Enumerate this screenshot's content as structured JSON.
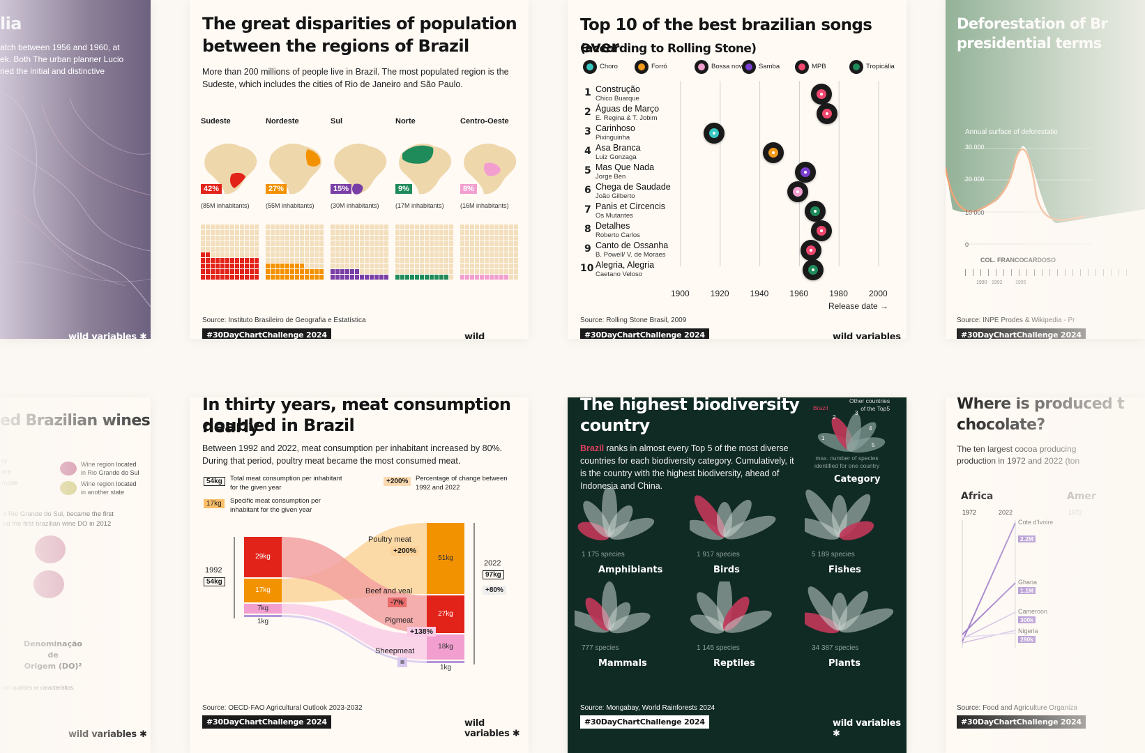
{
  "brand": "wild variables ✱",
  "hashtag": "#30DayChartChallenge 2024",
  "left_top": {
    "title_fragment": "lia",
    "text": [
      "atch between 1956 and 1960, at",
      "ek. Both The urban planner Lucio",
      "ned the initial and distinctive"
    ]
  },
  "population": {
    "title": "The great disparities of population between the regions of Brazil",
    "desc": "More than 200 millions of people live in Brazil. The most populated region is the Sudeste, which includes the cities of Rio de Janeiro and São Paulo.",
    "source": "Source: Instituto Brasileiro de Geografia e Estatística",
    "regions": [
      {
        "name": "Sudeste",
        "pct": "42%",
        "inhabitants": "(85M inhabitants)",
        "color": "#e2231a",
        "share": 42
      },
      {
        "name": "Nordeste",
        "pct": "27%",
        "inhabitants": "(55M inhabitants)",
        "color": "#f39200",
        "share": 27
      },
      {
        "name": "Sul",
        "pct": "15%",
        "inhabitants": "(30M inhabitants)",
        "color": "#7a3fa6",
        "share": 15
      },
      {
        "name": "Norte",
        "pct": "9%",
        "inhabitants": "(17M inhabitants)",
        "color": "#1f8a5a",
        "share": 9
      },
      {
        "name": "Centro-Oeste",
        "pct": "8%",
        "inhabitants": "(16M inhabitants)",
        "color": "#f29fd0",
        "share": 8
      }
    ]
  },
  "songs": {
    "title_line1": "Top 10 of the best brazilian songs ever",
    "title_line2": "(according to Rolling Stone)",
    "source": "Source: Rolling Stone Brasil, 2009",
    "legend": [
      {
        "label": "Choro",
        "color": "#38c6c0"
      },
      {
        "label": "Forró",
        "color": "#f29a1b"
      },
      {
        "label": "Bossa nova",
        "color": "#f29fd0"
      },
      {
        "label": "Samba",
        "color": "#7a3fd0"
      },
      {
        "label": "MPB",
        "color": "#f0476e"
      },
      {
        "label": "Tropicália",
        "color": "#1f8a5a"
      }
    ],
    "xlabel": "Release date →"
  },
  "chart_data": [
    {
      "type": "scatter",
      "title": "Top 10 of the best brazilian songs ever (according to Rolling Stone)",
      "xlabel": "Release date →",
      "xlim": [
        1900,
        2000
      ],
      "ticks": [
        "1900",
        "1920",
        "1940",
        "1960",
        "1980",
        "2000"
      ],
      "points": [
        {
          "rank": "1",
          "song": "Construção",
          "artist": "Chico Buarque",
          "year": 1971,
          "genre": "MPB"
        },
        {
          "rank": "2",
          "song": "Águas de Março",
          "artist": "E. Regina & T. Jobim",
          "year": 1974,
          "genre": "MPB"
        },
        {
          "rank": "3",
          "song": "Carinhoso",
          "artist": "Pixinguinha",
          "year": 1917,
          "genre": "Choro"
        },
        {
          "rank": "4",
          "song": "Asa Branca",
          "artist": "Luiz Gonzaga",
          "year": 1947,
          "genre": "Forró"
        },
        {
          "rank": "5",
          "song": "Mas Que Nada",
          "artist": "Jorge Ben",
          "year": 1963,
          "genre": "Samba"
        },
        {
          "rank": "6",
          "song": "Chega de Saudade",
          "artist": "João Gilberto",
          "year": 1959,
          "genre": "Bossa nova"
        },
        {
          "rank": "7",
          "song": "Panis et Circencis",
          "artist": "Os Mutantes",
          "year": 1968,
          "genre": "Tropicália"
        },
        {
          "rank": "8",
          "song": "Detalhes",
          "artist": "Roberto Carlos",
          "year": 1971,
          "genre": "MPB"
        },
        {
          "rank": "9",
          "song": "Canto de Ossanha",
          "artist": "B. Powell/ V. de Moraes",
          "year": 1966,
          "genre": "MPB"
        },
        {
          "rank": "10",
          "song": "Alegria, Alegria",
          "artist": "Caetano Veloso",
          "year": 1967,
          "genre": "Tropicália"
        }
      ]
    },
    {
      "type": "bar",
      "title": "The great disparities of population between the regions of Brazil",
      "categories": [
        "Sudeste",
        "Nordeste",
        "Sul",
        "Norte",
        "Centro-Oeste"
      ],
      "values": [
        42,
        27,
        15,
        9,
        8
      ]
    },
    {
      "type": "bar",
      "title": "In thirty years, meat consumption nearly doubled in Brazil",
      "categories": [
        "Poultry meat",
        "Beef and veal",
        "Pigmeat",
        "Sheepmeat"
      ],
      "series": [
        {
          "name": "1992",
          "values": [
            17,
            29,
            7,
            1
          ]
        },
        {
          "name": "2022",
          "values": [
            51,
            27,
            18,
            1
          ]
        }
      ]
    }
  ],
  "deforestation": {
    "title_line1": "Deforestation of Br",
    "title_line2": "presidential terms",
    "series_label": "Annual surface of deforestatio",
    "ticks": [
      "30 000",
      "20 000",
      "10 000",
      "0"
    ],
    "presidents": [
      "COL.",
      "FRANCO",
      "CARDOSO"
    ],
    "years": [
      "1990",
      "1992",
      "1995"
    ],
    "source": "Source: INPE Prodes & Wikipedia - Pr"
  },
  "wines": {
    "title": "ed Brazilian wines",
    "legend1_line1": "Wine region located",
    "legend1_line2": "in Rio Grande do Sul",
    "legend2_line1": "Wine region located",
    "legend2_line2": "in another state",
    "frag1": "ry",
    "frag2": "ore",
    "frag3": "more",
    "note1": "o Rio Grande do Sul, became the first",
    "note2": "nd the first brazilian wine DO in 2012",
    "do_line1": "Denominação de",
    "do_line2": "Origem (DO)²",
    "footnote": "ain qualities or caracteristics."
  },
  "meat": {
    "title_line1": "In thirty years, meat consumption nearly",
    "title_line2": "doubled in Brazil",
    "desc": "Between 1992 and 2022, meat consumption per inhabitant increased by 80%. During that period, poultry meat became the most consumed meat.",
    "legend": {
      "total_box": "54kg",
      "total_line1": "Total meat consumption per inhabitant",
      "total_line2": "for the given year",
      "specific_box": "17kg",
      "specific_line1": "Specific meat consumption per",
      "specific_line2": "inhabitant for the given year",
      "pct_box": "+200%",
      "pct_line1": "Percentage of change between",
      "pct_line2": "1992 and 2022"
    },
    "year1992": "1992",
    "total1992": "54kg",
    "year2022": "2022",
    "total2022": "97kg",
    "change_total": "+80%",
    "bars1992": [
      "29kg",
      "17kg",
      "7kg",
      "1kg"
    ],
    "bars2022": [
      "51kg",
      "27kg",
      "18kg",
      "1kg"
    ],
    "flows": [
      {
        "label": "Poultry meat",
        "change": "+200%"
      },
      {
        "label": "Beef and veal",
        "change": "-7%"
      },
      {
        "label": "Pigmeat",
        "change": "+138%"
      },
      {
        "label": "Sheepmeat",
        "change": "="
      }
    ],
    "source": "Source: OECD-FAO Agricultural Outlook 2023-2032"
  },
  "bio": {
    "title_line1": "The highest biodiversity",
    "title_line2": "country",
    "desc_brazil": "Brazil",
    "desc_rest": " ranks in almost every Top 5 of the most diverse countries for each biodiversity category. Cumulatively, it is the country with the highest biodiversity, ahead of Indonesia and China.",
    "key_brazil": "Brazil",
    "key_other_line1": "Other countries",
    "key_other_line2": "of the Top5",
    "key_max_line1": "max. number of species",
    "key_max_line2": "identified for one country",
    "key_category": "Category",
    "key_numbers": [
      "1",
      "2",
      "3",
      "4",
      "5"
    ],
    "categories": [
      {
        "name": "Amphibiants",
        "species": "1 175 species"
      },
      {
        "name": "Birds",
        "species": "1 917 species"
      },
      {
        "name": "Fishes",
        "species": "5 189 species"
      },
      {
        "name": "Mammals",
        "species": "777 species"
      },
      {
        "name": "Reptiles",
        "species": "1 145 species"
      },
      {
        "name": "Plants",
        "species": "34 387 species"
      }
    ],
    "source": "Source: Mongabay, World Rainforests 2024"
  },
  "chocolate": {
    "title_line1": "Where is produced t",
    "title_line2": "chocolate?",
    "desc_line1": "The ten largest cocoa producing",
    "desc_line2": "production in 1972 and 2022 (ton",
    "continent": "Africa",
    "continent2": "Amer",
    "y1972": "1972",
    "y2022": "2022",
    "y1972b": "1972",
    "countries": [
      {
        "name": "Cote d'Ivoire",
        "value": "2.2M"
      },
      {
        "name": "Ghana",
        "value": "1.1M"
      },
      {
        "name": "Cameroon",
        "value": "300k"
      },
      {
        "name": "Nigeria",
        "value": "280k"
      }
    ],
    "source": "Source: Food and Agriculture Organiza"
  }
}
